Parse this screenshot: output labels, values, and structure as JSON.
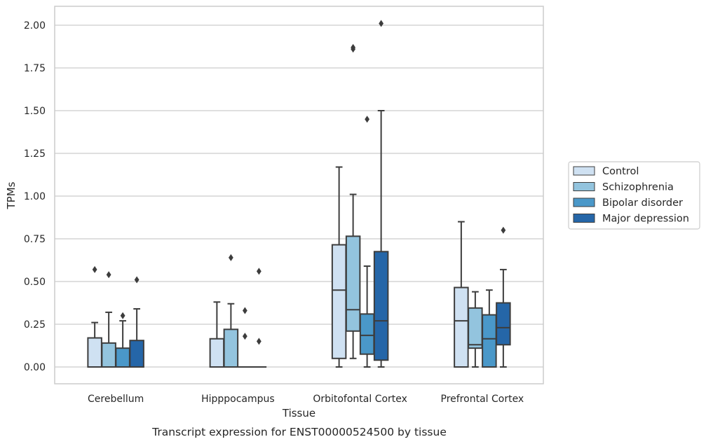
{
  "chart_data": {
    "type": "box",
    "xlabel": "Tissue",
    "ylabel": "TPMs",
    "caption": "Transcript expression for ENST00000524500 by tissue",
    "ylim": [
      -0.1,
      2.12
    ],
    "yticks": [
      "0.00",
      "0.25",
      "0.50",
      "0.75",
      "1.00",
      "1.25",
      "1.50",
      "1.75",
      "2.00"
    ],
    "grid": true,
    "legend_position": "right",
    "categories": [
      "Cerebellum",
      "Hipppocampus",
      "Orbitofontal Cortex",
      "Prefrontal Cortex"
    ],
    "series": [
      {
        "name": "Control",
        "color": "#cfe1f2",
        "boxes": [
          {
            "whislo": 0.0,
            "q1": 0.0,
            "med": 0.0,
            "q3": 0.17,
            "whishi": 0.26,
            "fliers": [
              0.57
            ]
          },
          {
            "whislo": 0.0,
            "q1": 0.0,
            "med": 0.0,
            "q3": 0.165,
            "whishi": 0.38,
            "fliers": []
          },
          {
            "whislo": 0.0,
            "q1": 0.05,
            "med": 0.45,
            "q3": 0.715,
            "whishi": 1.17,
            "fliers": []
          },
          {
            "whislo": 0.0,
            "q1": 0.0,
            "med": 0.27,
            "q3": 0.465,
            "whishi": 0.85,
            "fliers": []
          }
        ]
      },
      {
        "name": "Schizophrenia",
        "color": "#93c4de",
        "boxes": [
          {
            "whislo": 0.0,
            "q1": 0.0,
            "med": 0.0,
            "q3": 0.14,
            "whishi": 0.32,
            "fliers": [
              0.54
            ]
          },
          {
            "whislo": 0.0,
            "q1": 0.0,
            "med": 0.0,
            "q3": 0.22,
            "whishi": 0.37,
            "fliers": [
              0.64
            ]
          },
          {
            "whislo": 0.05,
            "q1": 0.21,
            "med": 0.335,
            "q3": 0.765,
            "whishi": 1.01,
            "fliers": [
              1.86,
              1.87
            ]
          },
          {
            "whislo": 0.0,
            "q1": 0.11,
            "med": 0.13,
            "q3": 0.345,
            "whishi": 0.44,
            "fliers": []
          }
        ]
      },
      {
        "name": "Bipolar disorder",
        "color": "#4a98c9",
        "boxes": [
          {
            "whislo": 0.0,
            "q1": 0.0,
            "med": 0.0,
            "q3": 0.11,
            "whishi": 0.27,
            "fliers": [
              0.3
            ]
          },
          {
            "whislo": 0.0,
            "q1": 0.0,
            "med": 0.0,
            "q3": 0.0,
            "whishi": 0.0,
            "fliers": [
              0.18,
              0.33
            ]
          },
          {
            "whislo": 0.0,
            "q1": 0.075,
            "med": 0.185,
            "q3": 0.31,
            "whishi": 0.59,
            "fliers": [
              1.45
            ]
          },
          {
            "whislo": 0.0,
            "q1": 0.0,
            "med": 0.165,
            "q3": 0.305,
            "whishi": 0.45,
            "fliers": []
          }
        ]
      },
      {
        "name": "Major depression",
        "color": "#2566a8",
        "boxes": [
          {
            "whislo": 0.0,
            "q1": 0.0,
            "med": 0.0,
            "q3": 0.155,
            "whishi": 0.34,
            "fliers": [
              0.51
            ]
          },
          {
            "whislo": 0.0,
            "q1": 0.0,
            "med": 0.0,
            "q3": 0.0,
            "whishi": 0.0,
            "fliers": [
              0.15,
              0.56
            ]
          },
          {
            "whislo": 0.0,
            "q1": 0.04,
            "med": 0.27,
            "q3": 0.675,
            "whishi": 1.5,
            "fliers": [
              2.01
            ]
          },
          {
            "whislo": 0.0,
            "q1": 0.13,
            "med": 0.23,
            "q3": 0.375,
            "whishi": 0.57,
            "fliers": [
              0.8
            ]
          }
        ]
      }
    ]
  }
}
